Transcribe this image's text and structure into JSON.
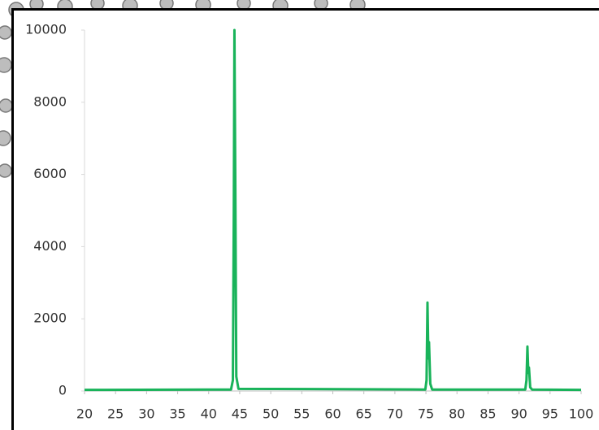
{
  "chart_data": {
    "type": "line",
    "x": [
      20,
      43.6,
      43.9,
      44.05,
      44.15,
      44.3,
      44.45,
      44.8,
      74.9,
      75.1,
      75.25,
      75.4,
      75.5,
      75.7,
      76,
      91.0,
      91.2,
      91.35,
      91.5,
      91.6,
      91.8,
      92.1,
      100
    ],
    "series": [
      {
        "color": "#19b35a",
        "values": [
          30,
          40,
          300,
          5000,
          10000,
          5500,
          400,
          60,
          40,
          300,
          2450,
          900,
          1350,
          200,
          40,
          40,
          300,
          1230,
          500,
          650,
          100,
          40,
          30
        ]
      }
    ],
    "xlim": [
      20,
      100
    ],
    "xticks": [
      20,
      25,
      30,
      35,
      40,
      45,
      50,
      55,
      60,
      65,
      70,
      75,
      80,
      85,
      90,
      95,
      100
    ],
    "ylim": [
      0,
      10000
    ],
    "yticks": [
      0,
      2000,
      4000,
      6000,
      8000,
      10000
    ]
  }
}
